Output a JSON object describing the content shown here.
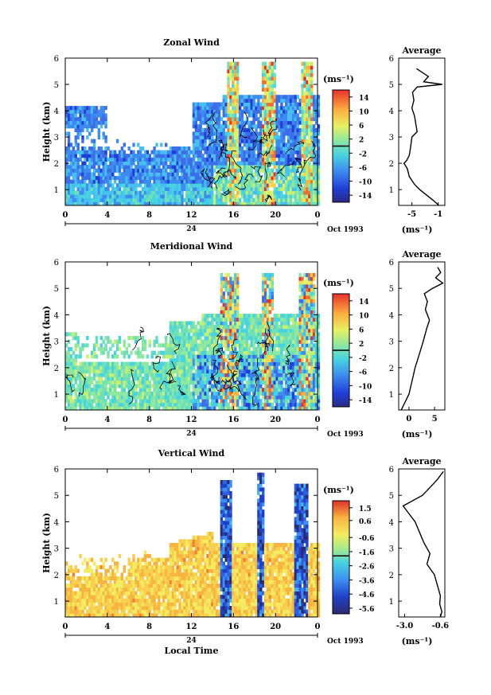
{
  "chart_data": [
    {
      "type": "heatmap",
      "title": "Zonal Wind",
      "ylabel": "Height (km)",
      "xlabel": "",
      "x_ticks": [
        "0",
        "4",
        "8",
        "12",
        "16",
        "20",
        "0"
      ],
      "x_range": [
        0,
        24
      ],
      "y_ticks": [
        "1",
        "2",
        "3",
        "4",
        "5",
        "6"
      ],
      "y_range": [
        0.4,
        6
      ],
      "date_tick_label": "24",
      "date_label": "Oct 1993",
      "colorbar": {
        "unit": "(ms⁻¹)",
        "tick_labels": [
          "14",
          "10",
          "6",
          "2",
          "-2",
          "-6",
          "-10",
          "-14"
        ],
        "range": [
          -16,
          16
        ],
        "marker_value": 0
      },
      "average_profile": {
        "title": "Average",
        "xlabel": "(ms⁻¹)",
        "x_ticks": [
          "-5",
          "-1"
        ],
        "x_range": [
          -7,
          0
        ],
        "heights": [
          0.4,
          0.6,
          0.8,
          1.0,
          1.2,
          1.5,
          1.8,
          2.0,
          2.1,
          2.3,
          2.6,
          3.0,
          3.2,
          3.5,
          3.8,
          4.1,
          4.4,
          4.7,
          4.9,
          5.0,
          5.1,
          5.3,
          5.6
        ],
        "values": [
          -0.9,
          -1.8,
          -2.8,
          -3.8,
          -4.6,
          -5.4,
          -5.7,
          -6.2,
          -5.8,
          -5.4,
          -5.2,
          -5.0,
          -4.2,
          -4.4,
          -4.6,
          -5.0,
          -4.7,
          -4.9,
          -4.2,
          -0.4,
          -3.2,
          -2.5,
          -4.3
        ]
      }
    },
    {
      "type": "heatmap",
      "title": "Meridional Wind",
      "ylabel": "Height (km)",
      "xlabel": "",
      "x_ticks": [
        "0",
        "4",
        "8",
        "12",
        "16",
        "20",
        "0"
      ],
      "x_range": [
        0,
        24
      ],
      "y_ticks": [
        "1",
        "2",
        "3",
        "4",
        "5",
        "6"
      ],
      "y_range": [
        0.4,
        6
      ],
      "date_tick_label": "24",
      "date_label": "Oct 1993",
      "colorbar": {
        "unit": "(ms⁻¹)",
        "tick_labels": [
          "14",
          "10",
          "6",
          "2",
          "-2",
          "-6",
          "-10",
          "-14"
        ],
        "range": [
          -16,
          16
        ],
        "marker_value": 0
      },
      "average_profile": {
        "title": "Average",
        "xlabel": "(ms⁻¹)",
        "x_ticks": [
          "0",
          "5"
        ],
        "x_range": [
          -2,
          7
        ],
        "heights": [
          0.4,
          0.6,
          1.0,
          1.5,
          2.0,
          2.5,
          3.0,
          3.5,
          3.8,
          4.2,
          4.5,
          4.8,
          5.0,
          5.2,
          5.4,
          5.6,
          5.8
        ],
        "values": [
          -1.5,
          -1.0,
          0.0,
          0.6,
          1.2,
          2.0,
          2.8,
          3.5,
          4.0,
          3.2,
          3.6,
          3.0,
          4.6,
          6.6,
          5.2,
          6.2,
          5.6
        ]
      }
    },
    {
      "type": "heatmap",
      "title": "Vertical Wind",
      "ylabel": "Height (km)",
      "xlabel": "Local Time",
      "x_ticks": [
        "0",
        "4",
        "8",
        "12",
        "16",
        "20",
        "0"
      ],
      "x_range": [
        0,
        24
      ],
      "y_ticks": [
        "1",
        "2",
        "3",
        "4",
        "5",
        "6"
      ],
      "y_range": [
        0.4,
        6
      ],
      "date_tick_label": "24",
      "date_label": "Oct 1993",
      "colorbar": {
        "unit": "(ms⁻¹)",
        "tick_labels": [
          "1.5",
          "0.6",
          "-0.6",
          "-1.6",
          "-2.6",
          "-3.6",
          "-4.6",
          "-5.6"
        ],
        "range": [
          -6,
          2
        ],
        "marker_value": -1.9
      },
      "average_profile": {
        "title": "Average",
        "xlabel": "(ms⁻¹)",
        "x_ticks": [
          "-3.0",
          "-0.6"
        ],
        "x_range": [
          -3.4,
          -0.3
        ],
        "heights": [
          0.4,
          0.6,
          0.9,
          1.2,
          1.6,
          2.0,
          2.4,
          2.8,
          3.2,
          3.6,
          4.0,
          4.3,
          4.6,
          5.0,
          5.3,
          5.6,
          5.9
        ],
        "values": [
          -0.6,
          -0.5,
          -0.65,
          -0.6,
          -0.8,
          -1.0,
          -1.5,
          -1.3,
          -1.7,
          -2.0,
          -2.3,
          -2.7,
          -3.1,
          -1.8,
          -1.3,
          -0.8,
          -0.4
        ]
      }
    }
  ]
}
